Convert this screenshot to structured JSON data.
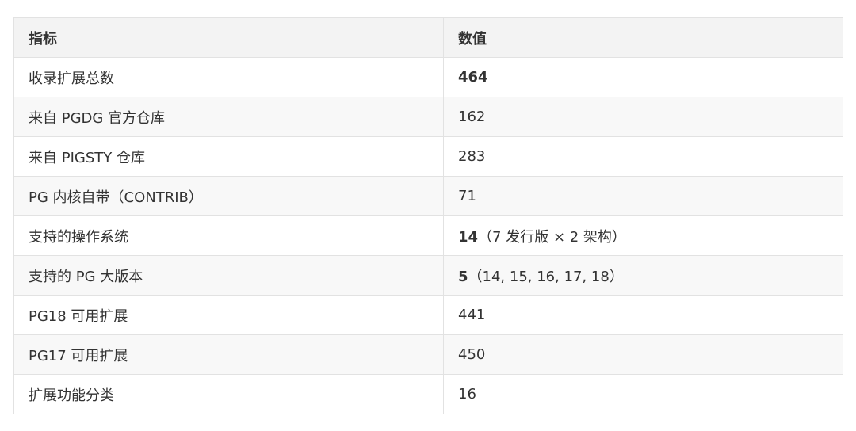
{
  "table": {
    "headers": [
      "指标",
      "数值"
    ],
    "rows": [
      {
        "label": "收录扩展总数",
        "bold": "464",
        "rest": ""
      },
      {
        "label": "来自 PGDG 官方仓库",
        "bold": "",
        "rest": "162"
      },
      {
        "label": "来自 PIGSTY 仓库",
        "bold": "",
        "rest": "283"
      },
      {
        "label": "PG 内核自带（CONTRIB）",
        "bold": "",
        "rest": "71"
      },
      {
        "label": "支持的操作系统",
        "bold": "14",
        "rest": "（7 发行版 × 2 架构）"
      },
      {
        "label": "支持的 PG 大版本",
        "bold": "5",
        "rest": "（14, 15, 16, 17, 18）"
      },
      {
        "label": "PG18 可用扩展",
        "bold": "",
        "rest": "441"
      },
      {
        "label": "PG17 可用扩展",
        "bold": "",
        "rest": "450"
      },
      {
        "label": "扩展功能分类",
        "bold": "",
        "rest": "16"
      }
    ]
  }
}
